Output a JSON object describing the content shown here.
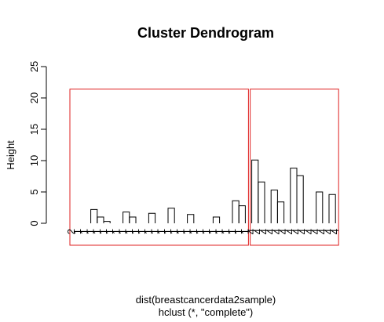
{
  "chart_data": {
    "type": "dendrogram",
    "title": "Cluster Dendrogram",
    "ylabel": "Height",
    "xlabel_lines": [
      "dist(breastcancerdata2sample)",
      "hclust (*, \"complete\")"
    ],
    "ylim": [
      0,
      25
    ],
    "yticks": [
      0,
      5,
      10,
      15,
      20,
      25
    ],
    "leaf_labels": [
      "2",
      "1",
      "1",
      "1",
      "1",
      "1",
      "1",
      "1",
      "1",
      "1",
      "1",
      "1",
      "1",
      "1",
      "1",
      "1",
      "1",
      "1",
      "1",
      "1",
      "1",
      "1",
      "1",
      "1",
      "1",
      "1",
      "1",
      "1",
      "4",
      "4",
      "4",
      "4",
      "4",
      "4",
      "4",
      "4",
      "4",
      "4",
      "4",
      "4",
      "4",
      "4"
    ],
    "merges": [
      {
        "x1": 0,
        "x2": 27,
        "h": 9.8
      },
      {
        "x1": 1,
        "x2": 27,
        "h": 7.2
      },
      {
        "x1": 2,
        "x2": 27,
        "h": 5.5
      },
      {
        "x1": 3,
        "x2": 27,
        "h": 4.4
      },
      {
        "x1": 3,
        "x2": 7,
        "h": 3.5
      },
      {
        "x1": 3,
        "x2": 4,
        "h": 2.2
      },
      {
        "x1": 4,
        "x2": 5,
        "h": 1.0
      },
      {
        "x1": 5,
        "x2": 6,
        "h": 0.3
      },
      {
        "x1": 7,
        "x2": 9,
        "h": 2.4
      },
      {
        "x1": 8,
        "x2": 9,
        "h": 1.8
      },
      {
        "x1": 9,
        "x2": 10,
        "h": 1.0
      },
      {
        "x1": 11,
        "x2": 27,
        "h": 5.0
      },
      {
        "x1": 11,
        "x2": 16,
        "h": 3.4
      },
      {
        "x1": 11,
        "x2": 13,
        "h": 2.3
      },
      {
        "x1": 12,
        "x2": 13,
        "h": 1.6
      },
      {
        "x1": 14,
        "x2": 16,
        "h": 3.2
      },
      {
        "x1": 15,
        "x2": 16,
        "h": 2.4
      },
      {
        "x1": 17,
        "x2": 27,
        "h": 4.2
      },
      {
        "x1": 17,
        "x2": 24,
        "h": 2.8
      },
      {
        "x1": 17,
        "x2": 19,
        "h": 2.2
      },
      {
        "x1": 18,
        "x2": 19,
        "h": 1.4
      },
      {
        "x1": 20,
        "x2": 24,
        "h": 2.4
      },
      {
        "x1": 21,
        "x2": 24,
        "h": 1.9
      },
      {
        "x1": 22,
        "x2": 23,
        "h": 1.0
      },
      {
        "x1": 25,
        "x2": 26,
        "h": 3.6
      },
      {
        "x1": 26,
        "x2": 27,
        "h": 2.8
      },
      {
        "x1": 28,
        "x2": 41,
        "h": 18.0
      },
      {
        "x1": 28,
        "x2": 33,
        "h": 12.4
      },
      {
        "x1": 28,
        "x2": 29,
        "h": 10.1
      },
      {
        "x1": 29,
        "x2": 30,
        "h": 6.6
      },
      {
        "x1": 31,
        "x2": 33,
        "h": 11.1
      },
      {
        "x1": 31,
        "x2": 32,
        "h": 5.3
      },
      {
        "x1": 32,
        "x2": 33,
        "h": 3.4
      },
      {
        "x1": 34,
        "x2": 41,
        "h": 14.2
      },
      {
        "x1": 34,
        "x2": 35,
        "h": 8.8
      },
      {
        "x1": 35,
        "x2": 36,
        "h": 7.6
      },
      {
        "x1": 37,
        "x2": 41,
        "h": 8.3
      },
      {
        "x1": 38,
        "x2": 39,
        "h": 5.0
      },
      {
        "x1": 40,
        "x2": 41,
        "h": 4.6
      },
      {
        "x1": 0,
        "x2": 28,
        "h": 24.6
      }
    ],
    "clusters": [
      {
        "from": 0,
        "to": 27,
        "top": 21.4
      },
      {
        "from": 28,
        "to": 41,
        "top": 21.4
      }
    ],
    "colors": {
      "tree": "#000000",
      "rect": "#df2020"
    }
  }
}
